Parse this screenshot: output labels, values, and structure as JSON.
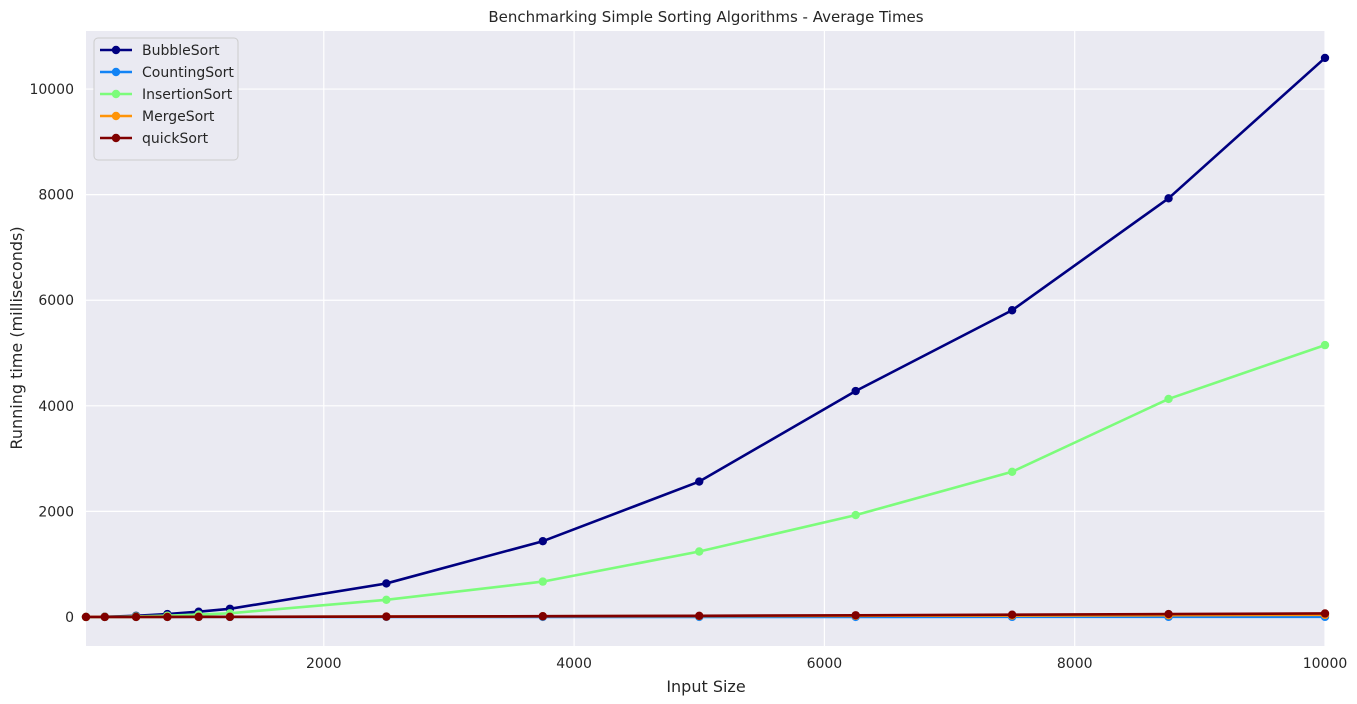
{
  "chart_data": {
    "type": "line",
    "title": "Benchmarking Simple Sorting Algorithms - Average Times",
    "xlabel": "Input Size",
    "ylabel": "Running time (milliseconds)",
    "xlim": [
      100,
      10000
    ],
    "ylim": [
      -550,
      11100
    ],
    "xticks": [
      2000,
      4000,
      6000,
      8000,
      10000
    ],
    "yticks": [
      0,
      2000,
      4000,
      6000,
      8000,
      10000
    ],
    "grid": true,
    "legend_position": "top-left",
    "x": [
      100,
      250,
      500,
      750,
      1000,
      1250,
      2500,
      3750,
      5000,
      6250,
      7500,
      8750,
      10000
    ],
    "series": [
      {
        "name": "BubbleSort",
        "color": "#000080",
        "values": [
          1,
          4,
          22,
          55,
          100,
          155,
          635,
          1435,
          2565,
          4280,
          5810,
          7930,
          10590
        ]
      },
      {
        "name": "CountingSort",
        "color": "#1283f5",
        "values": [
          0,
          0,
          0,
          0,
          0,
          0,
          1,
          1,
          1,
          1,
          2,
          2,
          2
        ]
      },
      {
        "name": "InsertionSort",
        "color": "#7cfc7b",
        "values": [
          0,
          2,
          10,
          25,
          45,
          70,
          325,
          670,
          1240,
          1930,
          2750,
          4130,
          5150
        ]
      },
      {
        "name": "MergeSort",
        "color": "#ff9408",
        "values": [
          0,
          1,
          1,
          2,
          2,
          3,
          7,
          12,
          17,
          22,
          27,
          33,
          40
        ]
      },
      {
        "name": "quickSort",
        "color": "#800000",
        "values": [
          0,
          0,
          1,
          1,
          2,
          2,
          7,
          14,
          22,
          32,
          43,
          55,
          66
        ]
      }
    ]
  }
}
